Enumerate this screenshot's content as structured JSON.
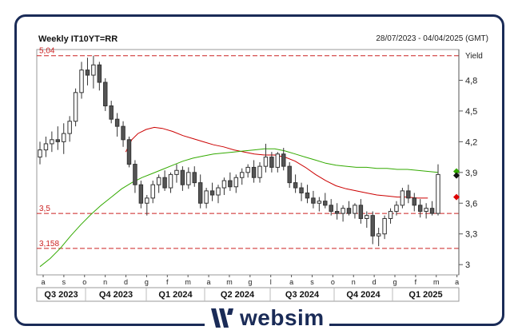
{
  "header": {
    "title": "Weekly IT10YT=RR",
    "date_range": "28/07/2023 - 04/04/2025 (GMT)"
  },
  "logo": {
    "text": "websim"
  },
  "chart_data": {
    "type": "candlestick",
    "ylabel": "Yield",
    "ylim": [
      2.9,
      5.1
    ],
    "yticks": [
      3,
      3.3,
      3.6,
      3.9,
      4.2,
      4.5,
      4.8
    ],
    "ytick_labels": [
      "3",
      "3,3",
      "3,6",
      "3,9",
      "4,2",
      "4,5",
      "4,8"
    ],
    "grid": false,
    "x_month_labels": [
      "a",
      "s",
      "o",
      "n",
      "d",
      "g",
      "f",
      "m",
      "a",
      "m",
      "g",
      "l",
      "a",
      "s",
      "o",
      "n",
      "d",
      "g",
      "f",
      "m",
      "a"
    ],
    "quarters": [
      "Q3 2023",
      "Q4 2023",
      "Q1 2024",
      "Q2 2024",
      "Q3 2024",
      "Q4 2024",
      "Q1 2025"
    ],
    "reference_lines": [
      {
        "value": 5.04,
        "label": "5,04"
      },
      {
        "value": 3.5,
        "label": "3,5"
      },
      {
        "value": 3.158,
        "label": "3,158"
      }
    ],
    "candles": [
      [
        4.05,
        4.2,
        3.98,
        4.12
      ],
      [
        4.12,
        4.25,
        4.05,
        4.18
      ],
      [
        4.18,
        4.3,
        4.1,
        4.22
      ],
      [
        4.22,
        4.35,
        4.12,
        4.2
      ],
      [
        4.2,
        4.38,
        4.08,
        4.28
      ],
      [
        4.28,
        4.45,
        4.2,
        4.4
      ],
      [
        4.4,
        4.72,
        4.35,
        4.68
      ],
      [
        4.68,
        4.98,
        4.62,
        4.9
      ],
      [
        4.9,
        5.02,
        4.75,
        4.85
      ],
      [
        4.85,
        5.04,
        4.72,
        4.95
      ],
      [
        4.95,
        4.98,
        4.7,
        4.78
      ],
      [
        4.78,
        4.82,
        4.5,
        4.55
      ],
      [
        4.55,
        4.6,
        4.38,
        4.42
      ],
      [
        4.42,
        4.48,
        4.25,
        4.35
      ],
      [
        4.35,
        4.4,
        4.15,
        4.22
      ],
      [
        4.22,
        4.25,
        3.95,
        3.98
      ],
      [
        3.98,
        4.02,
        3.7,
        3.78
      ],
      [
        3.78,
        3.82,
        3.55,
        3.6
      ],
      [
        3.6,
        3.68,
        3.48,
        3.65
      ],
      [
        3.65,
        3.82,
        3.6,
        3.78
      ],
      [
        3.78,
        3.88,
        3.7,
        3.85
      ],
      [
        3.85,
        3.92,
        3.72,
        3.75
      ],
      [
        3.75,
        3.9,
        3.7,
        3.88
      ],
      [
        3.88,
        3.98,
        3.8,
        3.92
      ],
      [
        3.92,
        3.96,
        3.72,
        3.78
      ],
      [
        3.78,
        3.95,
        3.74,
        3.9
      ],
      [
        3.9,
        3.96,
        3.76,
        3.8
      ],
      [
        3.8,
        3.88,
        3.55,
        3.6
      ],
      [
        3.6,
        3.75,
        3.55,
        3.72
      ],
      [
        3.72,
        3.8,
        3.62,
        3.68
      ],
      [
        3.68,
        3.78,
        3.6,
        3.75
      ],
      [
        3.75,
        3.85,
        3.68,
        3.82
      ],
      [
        3.82,
        3.9,
        3.72,
        3.76
      ],
      [
        3.76,
        3.88,
        3.7,
        3.85
      ],
      [
        3.85,
        3.94,
        3.78,
        3.9
      ],
      [
        3.9,
        3.98,
        3.85,
        3.95
      ],
      [
        3.95,
        4.02,
        3.8,
        3.85
      ],
      [
        3.85,
        4.0,
        3.8,
        3.96
      ],
      [
        3.96,
        4.18,
        3.9,
        4.05
      ],
      [
        4.05,
        4.1,
        3.9,
        3.95
      ],
      [
        3.95,
        4.1,
        3.9,
        4.08
      ],
      [
        4.08,
        4.14,
        3.92,
        3.96
      ],
      [
        3.96,
        4.0,
        3.75,
        3.8
      ],
      [
        3.8,
        3.88,
        3.7,
        3.75
      ],
      [
        3.75,
        3.8,
        3.62,
        3.7
      ],
      [
        3.7,
        3.78,
        3.6,
        3.65
      ],
      [
        3.65,
        3.72,
        3.55,
        3.6
      ],
      [
        3.6,
        3.66,
        3.52,
        3.62
      ],
      [
        3.62,
        3.7,
        3.55,
        3.58
      ],
      [
        3.58,
        3.64,
        3.48,
        3.52
      ],
      [
        3.52,
        3.6,
        3.44,
        3.5
      ],
      [
        3.5,
        3.58,
        3.42,
        3.55
      ],
      [
        3.55,
        3.62,
        3.48,
        3.5
      ],
      [
        3.5,
        3.6,
        3.45,
        3.58
      ],
      [
        3.58,
        3.64,
        3.4,
        3.45
      ],
      [
        3.45,
        3.52,
        3.36,
        3.48
      ],
      [
        3.48,
        3.52,
        3.2,
        3.28
      ],
      [
        3.28,
        3.36,
        3.18,
        3.3
      ],
      [
        3.3,
        3.48,
        3.25,
        3.45
      ],
      [
        3.45,
        3.55,
        3.4,
        3.52
      ],
      [
        3.52,
        3.62,
        3.48,
        3.58
      ],
      [
        3.58,
        3.75,
        3.55,
        3.72
      ],
      [
        3.72,
        3.78,
        3.6,
        3.65
      ],
      [
        3.65,
        3.7,
        3.52,
        3.58
      ],
      [
        3.58,
        3.64,
        3.46,
        3.52
      ],
      [
        3.52,
        3.6,
        3.45,
        3.55
      ],
      [
        3.55,
        3.62,
        3.48,
        3.5
      ],
      [
        3.5,
        3.98,
        3.48,
        3.88
      ]
    ],
    "series": [
      {
        "color": "#cc0000",
        "points": [
          [
            4.2,
            4.1
          ],
          [
            4.5,
            4.22
          ],
          [
            4.8,
            4.28
          ],
          [
            5.2,
            4.32
          ],
          [
            5.6,
            4.34
          ],
          [
            6,
            4.33
          ],
          [
            6.5,
            4.3
          ],
          [
            7,
            4.26
          ],
          [
            7.5,
            4.23
          ],
          [
            8,
            4.2
          ],
          [
            8.5,
            4.17
          ],
          [
            9,
            4.15
          ],
          [
            9.5,
            4.12
          ],
          [
            10,
            4.1
          ],
          [
            10.5,
            4.08
          ],
          [
            11,
            4.07
          ],
          [
            11.5,
            4.07
          ],
          [
            12,
            4.05
          ],
          [
            12.5,
            4.01
          ],
          [
            13,
            3.95
          ],
          [
            13.5,
            3.88
          ],
          [
            14,
            3.82
          ],
          [
            14.5,
            3.77
          ],
          [
            15,
            3.74
          ],
          [
            15.5,
            3.72
          ],
          [
            16,
            3.7
          ],
          [
            16.5,
            3.68
          ],
          [
            17,
            3.67
          ],
          [
            17.5,
            3.66
          ],
          [
            18,
            3.66
          ],
          [
            18.5,
            3.65
          ],
          [
            19,
            3.65
          ]
        ]
      },
      {
        "color": "#33aa00",
        "points": [
          [
            0,
            2.98
          ],
          [
            0.5,
            3.06
          ],
          [
            1,
            3.16
          ],
          [
            1.5,
            3.28
          ],
          [
            2,
            3.39
          ],
          [
            2.5,
            3.49
          ],
          [
            3,
            3.58
          ],
          [
            3.5,
            3.66
          ],
          [
            4,
            3.74
          ],
          [
            4.5,
            3.8
          ],
          [
            5,
            3.85
          ],
          [
            5.5,
            3.89
          ],
          [
            6,
            3.93
          ],
          [
            6.5,
            3.97
          ],
          [
            7,
            4.01
          ],
          [
            7.5,
            4.04
          ],
          [
            8,
            4.06
          ],
          [
            8.5,
            4.08
          ],
          [
            9,
            4.09
          ],
          [
            9.5,
            4.1
          ],
          [
            10,
            4.11
          ],
          [
            10.5,
            4.12
          ],
          [
            11,
            4.13
          ],
          [
            11.5,
            4.13
          ],
          [
            12,
            4.11
          ],
          [
            12.5,
            4.08
          ],
          [
            13,
            4.05
          ],
          [
            13.5,
            4.02
          ],
          [
            14,
            3.99
          ],
          [
            14.5,
            3.97
          ],
          [
            15,
            3.96
          ],
          [
            15.5,
            3.95
          ],
          [
            16,
            3.95
          ],
          [
            16.5,
            3.94
          ],
          [
            17,
            3.94
          ],
          [
            17.5,
            3.93
          ],
          [
            18,
            3.93
          ],
          [
            18.5,
            3.92
          ],
          [
            19,
            3.91
          ],
          [
            19.5,
            3.9
          ]
        ]
      }
    ],
    "markers": [
      {
        "value": 3.91,
        "color": "#33aa00",
        "shape": "diamond"
      },
      {
        "value": 3.87,
        "color": "#111111",
        "shape": "diamond"
      },
      {
        "value": 3.66,
        "color": "#dd0000",
        "shape": "diamond"
      }
    ]
  }
}
